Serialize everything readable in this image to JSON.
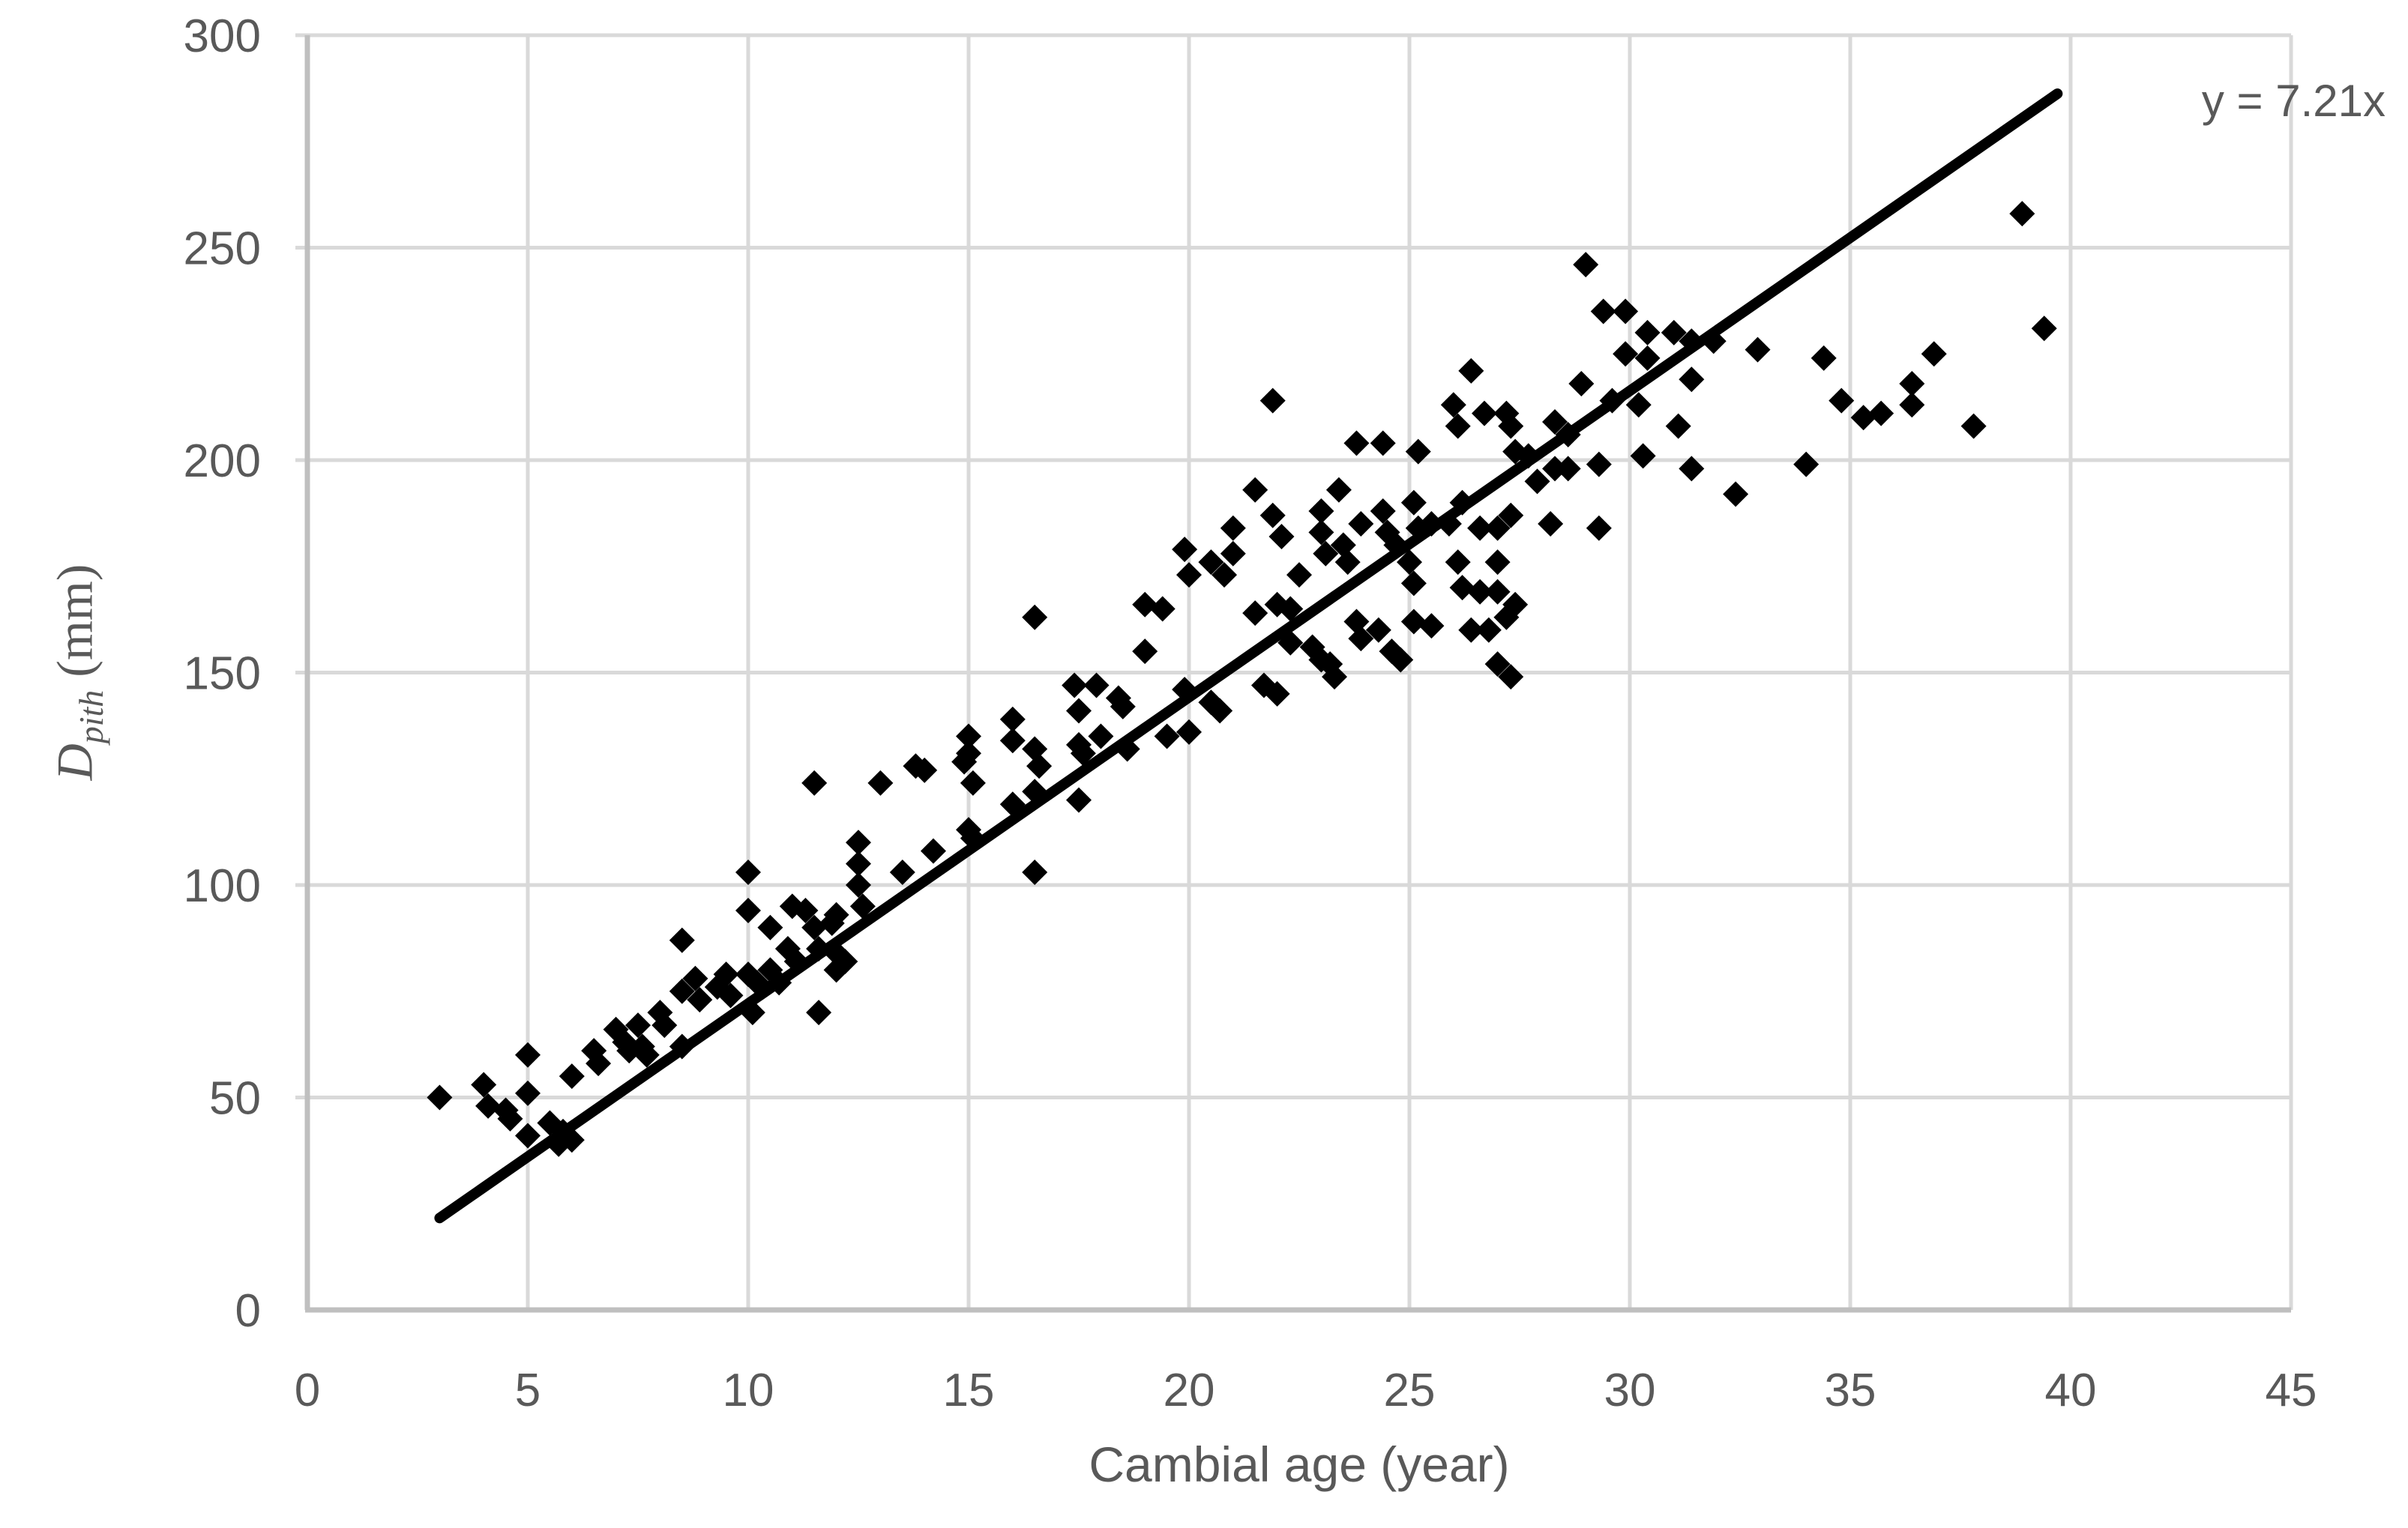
{
  "chart_data": {
    "type": "scatter",
    "title": "",
    "xlabel": "Cambial age (year)",
    "ylabel": {
      "symbol": "D",
      "subscript": "pith",
      "unit": " (mm)"
    },
    "xlim": [
      0,
      45
    ],
    "ylim": [
      0,
      300
    ],
    "x_ticks": [
      0,
      5,
      10,
      15,
      20,
      25,
      30,
      35,
      40,
      45
    ],
    "y_ticks": [
      0,
      50,
      100,
      150,
      200,
      250,
      300
    ],
    "grid": true,
    "legend_position": "none",
    "marker": "diamond",
    "colors": {
      "points": "#000000",
      "trendline": "#000000",
      "gridline": "#D9D9D9",
      "axis": "#BFBFBF",
      "text": "#595959",
      "background": "#FFFFFF"
    },
    "trendline": {
      "label": "y = 7.21x",
      "slope": 7.21,
      "intercept": 0,
      "x_start": 3,
      "x_end": 39.7
    },
    "points": [
      [
        3,
        50
      ],
      [
        4,
        53
      ],
      [
        4.1,
        48
      ],
      [
        4.5,
        47
      ],
      [
        4.6,
        45
      ],
      [
        5,
        60
      ],
      [
        5,
        51
      ],
      [
        5,
        41
      ],
      [
        5.5,
        44
      ],
      [
        5.7,
        39
      ],
      [
        5.8,
        42
      ],
      [
        6,
        55
      ],
      [
        6,
        40
      ],
      [
        6.5,
        61
      ],
      [
        6.6,
        58
      ],
      [
        7,
        66
      ],
      [
        7.2,
        63
      ],
      [
        7.3,
        61
      ],
      [
        7.5,
        67
      ],
      [
        7.6,
        62
      ],
      [
        7.7,
        60
      ],
      [
        8,
        70
      ],
      [
        8.1,
        67
      ],
      [
        8.5,
        62
      ],
      [
        8.5,
        75
      ],
      [
        8.5,
        87
      ],
      [
        8.8,
        78
      ],
      [
        8.9,
        73
      ],
      [
        9.3,
        76
      ],
      [
        9.5,
        79
      ],
      [
        9.6,
        74
      ],
      [
        10,
        79
      ],
      [
        10.1,
        70
      ],
      [
        10.2,
        77
      ],
      [
        10,
        94
      ],
      [
        10,
        103
      ],
      [
        10.5,
        80
      ],
      [
        10.5,
        90
      ],
      [
        10.7,
        77
      ],
      [
        10.9,
        85
      ],
      [
        11,
        95
      ],
      [
        11.1,
        82
      ],
      [
        11.3,
        94
      ],
      [
        11.5,
        90
      ],
      [
        11.5,
        124
      ],
      [
        11.6,
        85
      ],
      [
        11.6,
        70
      ],
      [
        11.9,
        91
      ],
      [
        12,
        93
      ],
      [
        12,
        84
      ],
      [
        12,
        80
      ],
      [
        12.2,
        82
      ],
      [
        12.5,
        110
      ],
      [
        12.5,
        105
      ],
      [
        12.5,
        100
      ],
      [
        12.6,
        95
      ],
      [
        13,
        124
      ],
      [
        13.5,
        103
      ],
      [
        13.8,
        128
      ],
      [
        14,
        127
      ],
      [
        14.2,
        108
      ],
      [
        14.9,
        129
      ],
      [
        15,
        135
      ],
      [
        15,
        131
      ],
      [
        15,
        113
      ],
      [
        15.1,
        124
      ],
      [
        15.1,
        111
      ],
      [
        16,
        139
      ],
      [
        16,
        134
      ],
      [
        16,
        119
      ],
      [
        16.5,
        163
      ],
      [
        16.5,
        132
      ],
      [
        16.5,
        122
      ],
      [
        16.5,
        103
      ],
      [
        16.6,
        128
      ],
      [
        17.4,
        147
      ],
      [
        17.5,
        141
      ],
      [
        17.5,
        133
      ],
      [
        17.5,
        120
      ],
      [
        17.6,
        131
      ],
      [
        17.9,
        147
      ],
      [
        18,
        135
      ],
      [
        18.4,
        144
      ],
      [
        18.5,
        142
      ],
      [
        18.6,
        132
      ],
      [
        19,
        166
      ],
      [
        19,
        155
      ],
      [
        19.4,
        165
      ],
      [
        19.5,
        135
      ],
      [
        19.9,
        179
      ],
      [
        19.9,
        146
      ],
      [
        20,
        173
      ],
      [
        20,
        136
      ],
      [
        20.5,
        176
      ],
      [
        20.5,
        143
      ],
      [
        20.7,
        141
      ],
      [
        20.8,
        173
      ],
      [
        21,
        184
      ],
      [
        21,
        178
      ],
      [
        21.5,
        193
      ],
      [
        21.5,
        164
      ],
      [
        21.7,
        147
      ],
      [
        21.9,
        187
      ],
      [
        21.9,
        214
      ],
      [
        22,
        166
      ],
      [
        22,
        145
      ],
      [
        22.1,
        182
      ],
      [
        22.3,
        165
      ],
      [
        22.3,
        157
      ],
      [
        22.5,
        173
      ],
      [
        22.8,
        156
      ],
      [
        23,
        188
      ],
      [
        23,
        183
      ],
      [
        23,
        153
      ],
      [
        23.1,
        178
      ],
      [
        23.2,
        152
      ],
      [
        23.3,
        149
      ],
      [
        23.4,
        193
      ],
      [
        23.5,
        180
      ],
      [
        23.6,
        176
      ],
      [
        23.8,
        204
      ],
      [
        23.8,
        162
      ],
      [
        23.9,
        185
      ],
      [
        23.9,
        158
      ],
      [
        24.3,
        160
      ],
      [
        24.4,
        204
      ],
      [
        24.4,
        188
      ],
      [
        24.5,
        183
      ],
      [
        24.6,
        155
      ],
      [
        24.7,
        180
      ],
      [
        24.8,
        153
      ],
      [
        25,
        176
      ],
      [
        25.1,
        190
      ],
      [
        25.1,
        171
      ],
      [
        25.1,
        162
      ],
      [
        25.2,
        202
      ],
      [
        25.2,
        184
      ],
      [
        25.5,
        185
      ],
      [
        25.5,
        161
      ],
      [
        25.9,
        185
      ],
      [
        26,
        213
      ],
      [
        26.1,
        208
      ],
      [
        26.1,
        176
      ],
      [
        26.2,
        190
      ],
      [
        26.2,
        170
      ],
      [
        26.4,
        221
      ],
      [
        26.4,
        160
      ],
      [
        26.6,
        184
      ],
      [
        26.6,
        169
      ],
      [
        26.7,
        211
      ],
      [
        26.8,
        160
      ],
      [
        27,
        184
      ],
      [
        27,
        176
      ],
      [
        27,
        169
      ],
      [
        27,
        152
      ],
      [
        27.2,
        211
      ],
      [
        27.2,
        163
      ],
      [
        27.3,
        208
      ],
      [
        27.3,
        187
      ],
      [
        27.3,
        149
      ],
      [
        27.4,
        202
      ],
      [
        27.4,
        166
      ],
      [
        27.7,
        201
      ],
      [
        27.9,
        195
      ],
      [
        28.2,
        185
      ],
      [
        28.3,
        209
      ],
      [
        28.3,
        198
      ],
      [
        28.6,
        206
      ],
      [
        28.6,
        198
      ],
      [
        28.9,
        218
      ],
      [
        29,
        246
      ],
      [
        29.3,
        199
      ],
      [
        29.3,
        184
      ],
      [
        29.4,
        235
      ],
      [
        29.6,
        214
      ],
      [
        29.9,
        235
      ],
      [
        29.9,
        225
      ],
      [
        30.2,
        213
      ],
      [
        30.3,
        201
      ],
      [
        30.4,
        230
      ],
      [
        30.4,
        224
      ],
      [
        31,
        230
      ],
      [
        31.1,
        208
      ],
      [
        31.4,
        228
      ],
      [
        31.4,
        219
      ],
      [
        31.4,
        198
      ],
      [
        31.9,
        228
      ],
      [
        32.4,
        192
      ],
      [
        32.9,
        226
      ],
      [
        34,
        199
      ],
      [
        34.4,
        224
      ],
      [
        34.8,
        214
      ],
      [
        35.3,
        210
      ],
      [
        35.7,
        211
      ],
      [
        36.4,
        218
      ],
      [
        36.4,
        213
      ],
      [
        36.9,
        225
      ],
      [
        37.8,
        208
      ],
      [
        38.9,
        258
      ],
      [
        39.4,
        231
      ]
    ]
  }
}
